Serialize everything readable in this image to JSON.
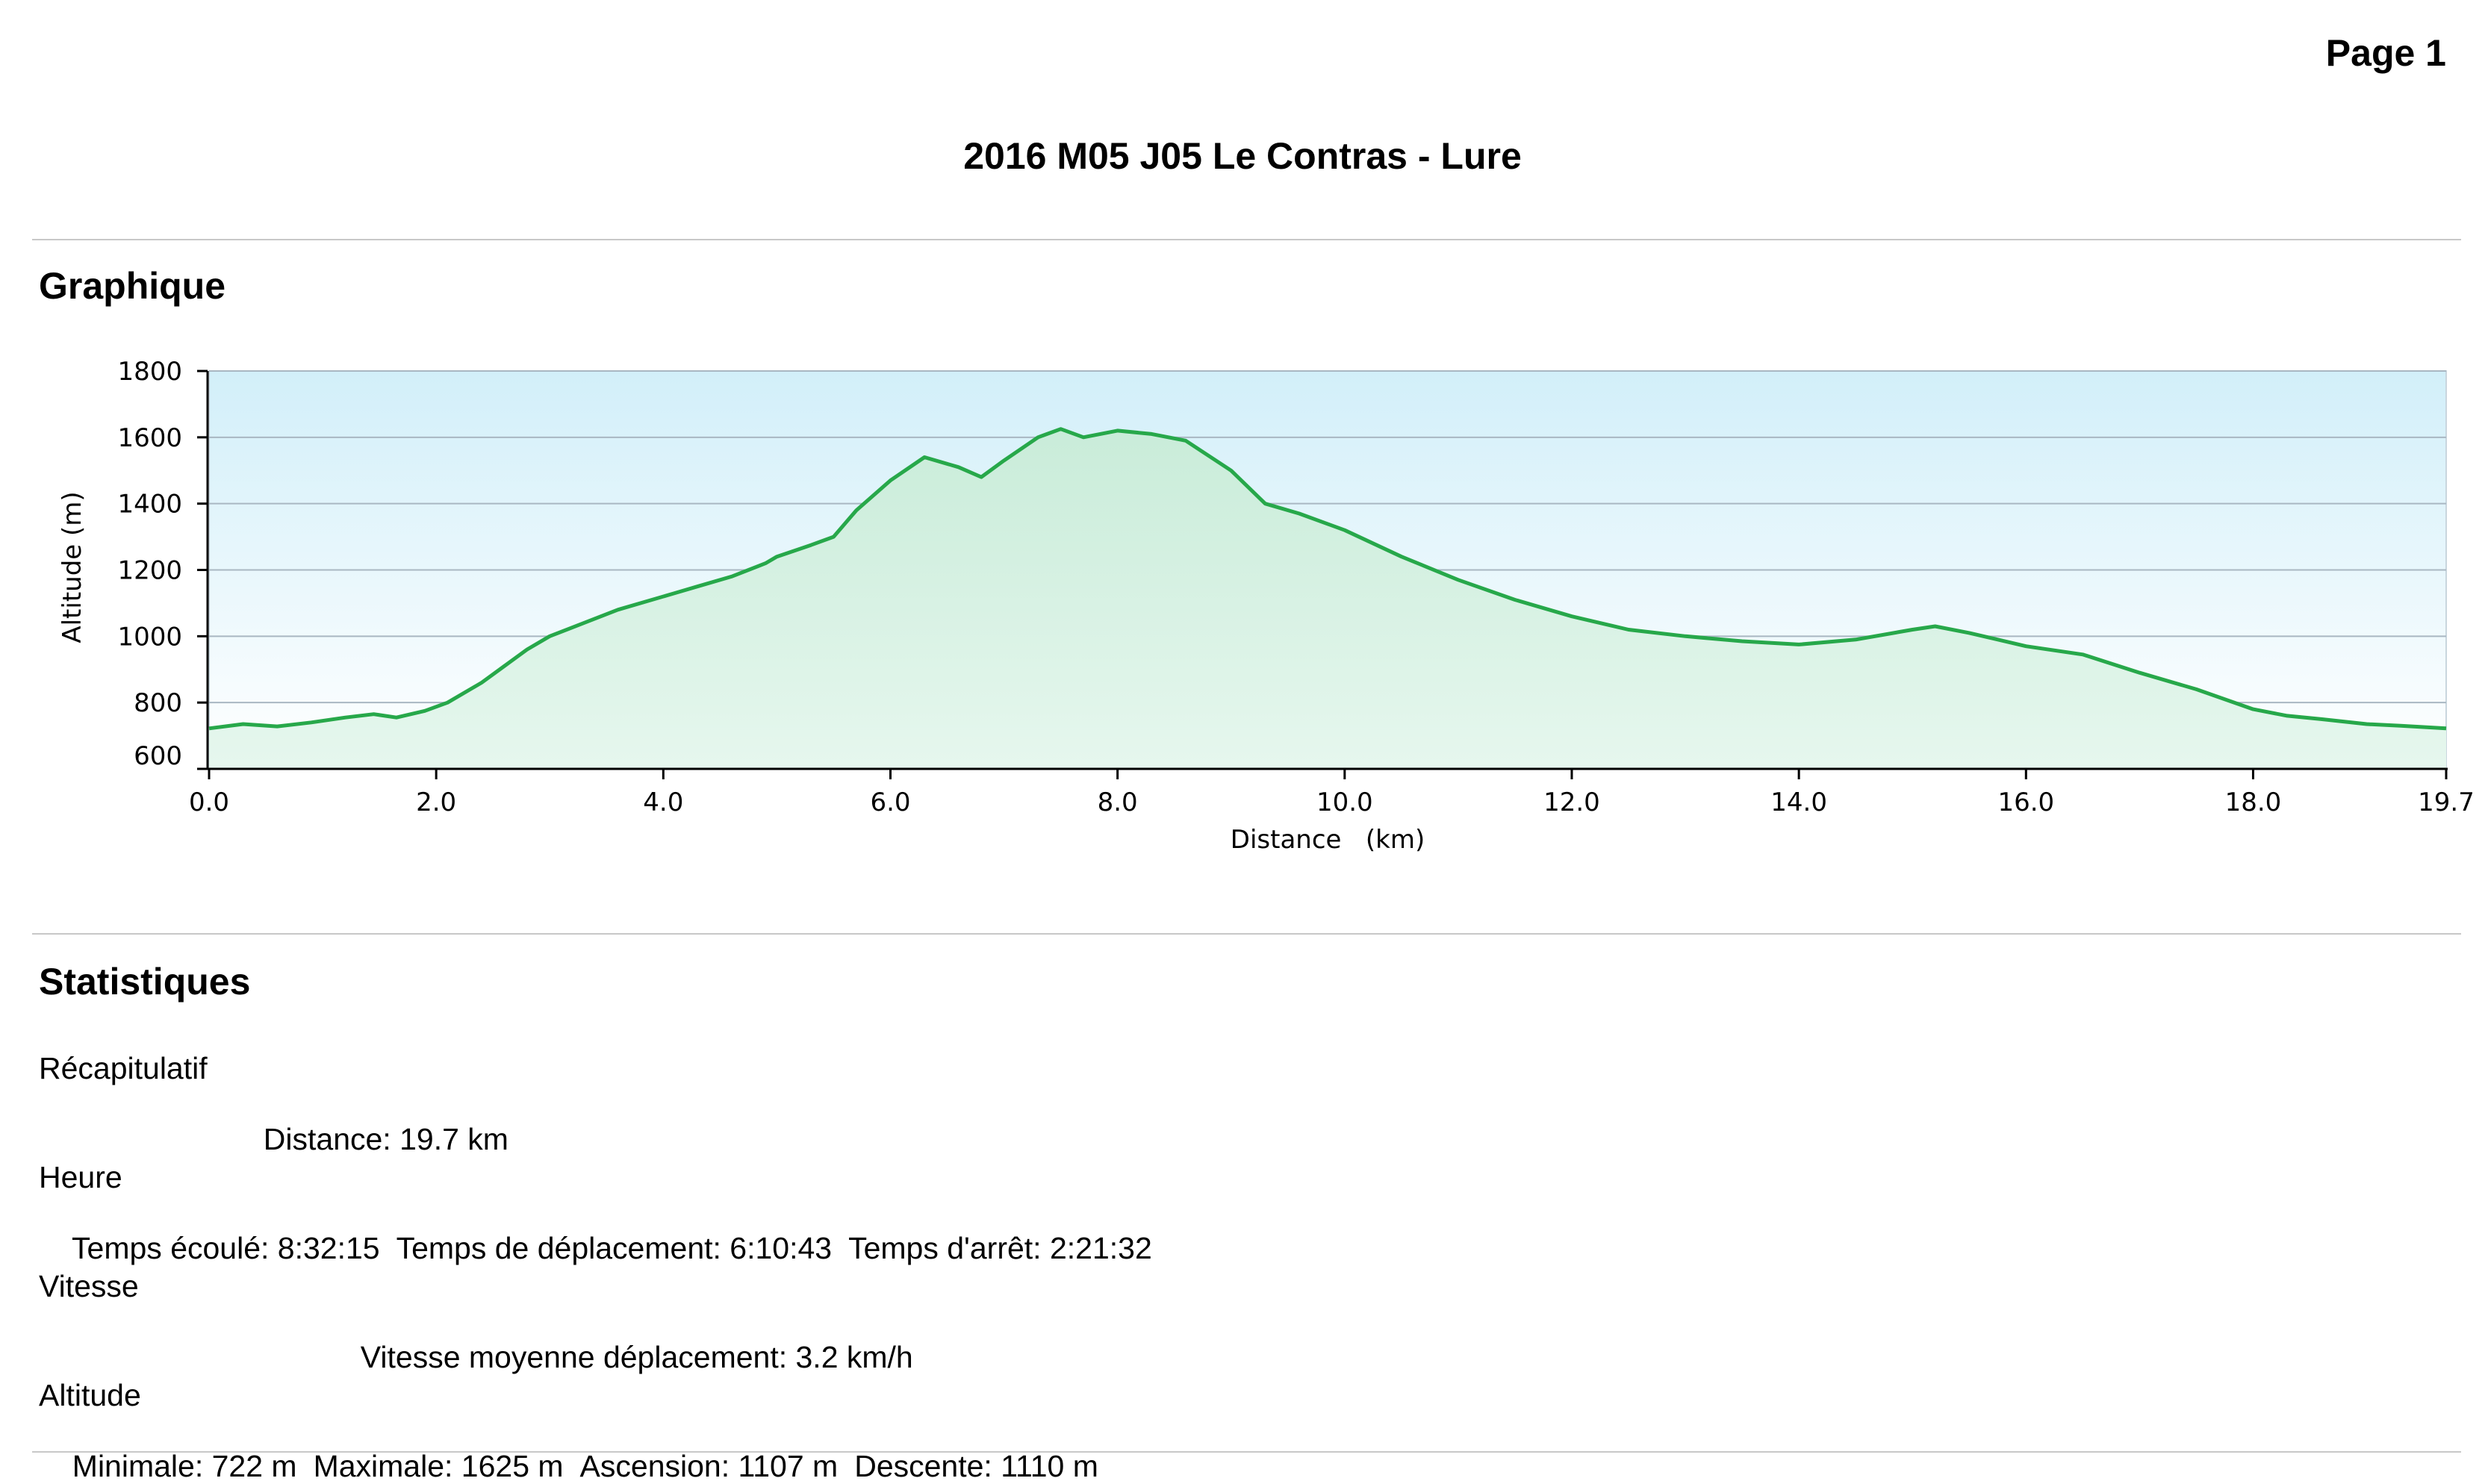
{
  "header": {
    "page_label": "Page 1",
    "title": "2016 M05 J05 Le Contras - Lure"
  },
  "sections": {
    "chart_heading": "Graphique",
    "stats_heading": "Statistiques"
  },
  "colors": {
    "line": "#27a84a",
    "fill_bottom": "#e6f7ee",
    "fill_top": "#c9ecd9",
    "plot_bg_top": "#d2eff9",
    "plot_bg_bottom": "#ffffff",
    "gridline": "#a9b7c2"
  },
  "chart_data": {
    "type": "area",
    "xlabel": "Distance   (km)",
    "ylabel": "Altitude (m)",
    "xlim": [
      0,
      19.7
    ],
    "ylim": [
      600,
      1800
    ],
    "x_ticks": [
      0,
      2,
      4,
      6,
      8,
      10,
      12,
      14,
      16,
      18,
      19.7
    ],
    "x_tick_labels": [
      "0.0",
      "2.0",
      "4.0",
      "6.0",
      "8.0",
      "10.0",
      "12.0",
      "14.0",
      "16.0",
      "18.0",
      "19.7"
    ],
    "y_ticks": [
      600,
      800,
      1000,
      1200,
      1400,
      1600,
      1800
    ],
    "y_tick_labels": [
      "600",
      "800",
      "1000",
      "1200",
      "1400",
      "1600",
      "1800"
    ],
    "grid": true,
    "series": [
      {
        "x": [
          0,
          0.3,
          0.6,
          0.9,
          1.2,
          1.45,
          1.65,
          1.9,
          2.1,
          2.4,
          2.6,
          2.8,
          3.0,
          3.3,
          3.6,
          3.9,
          4.1,
          4.3,
          4.6,
          4.9,
          5.0,
          5.3,
          5.5,
          5.7,
          6.0,
          6.3,
          6.6,
          6.8,
          7.0,
          7.3,
          7.5,
          7.7,
          8.0,
          8.3,
          8.6,
          9.0,
          9.3,
          9.6,
          10.0,
          10.5,
          11.0,
          11.5,
          12.0,
          12.5,
          13.0,
          13.5,
          14.0,
          14.5,
          15.0,
          15.2,
          15.5,
          16.0,
          16.5,
          17.0,
          17.5,
          18.0,
          18.3,
          18.6,
          19.0,
          19.3,
          19.7
        ],
        "y": [
          722,
          735,
          728,
          740,
          755,
          765,
          755,
          775,
          800,
          860,
          910,
          960,
          1000,
          1040,
          1080,
          1110,
          1130,
          1150,
          1180,
          1220,
          1240,
          1275,
          1300,
          1380,
          1470,
          1540,
          1510,
          1480,
          1530,
          1600,
          1625,
          1600,
          1620,
          1610,
          1590,
          1500,
          1400,
          1370,
          1320,
          1240,
          1170,
          1110,
          1060,
          1020,
          1000,
          985,
          975,
          990,
          1020,
          1030,
          1010,
          970,
          945,
          890,
          840,
          780,
          760,
          750,
          735,
          730,
          722
        ]
      }
    ]
  },
  "stats": {
    "recap": {
      "title": "Récapitulatif",
      "distance": "Distance: 19.7 km"
    },
    "heure": {
      "title": "Heure",
      "elapsed": "Temps écoulé: 8:32:15",
      "moving": "Temps de déplacement: 6:10:43",
      "stopped": "Temps d'arrêt: 2:21:32"
    },
    "vitesse": {
      "title": "Vitesse",
      "avg_moving": "Vitesse moyenne déplacement: 3.2 km/h"
    },
    "altitude": {
      "title": "Altitude",
      "min": "Minimale: 722 m",
      "max": "Maximale: 1625 m",
      "ascent": "Ascension: 1107 m",
      "descent": "Descente: 1110 m"
    }
  }
}
